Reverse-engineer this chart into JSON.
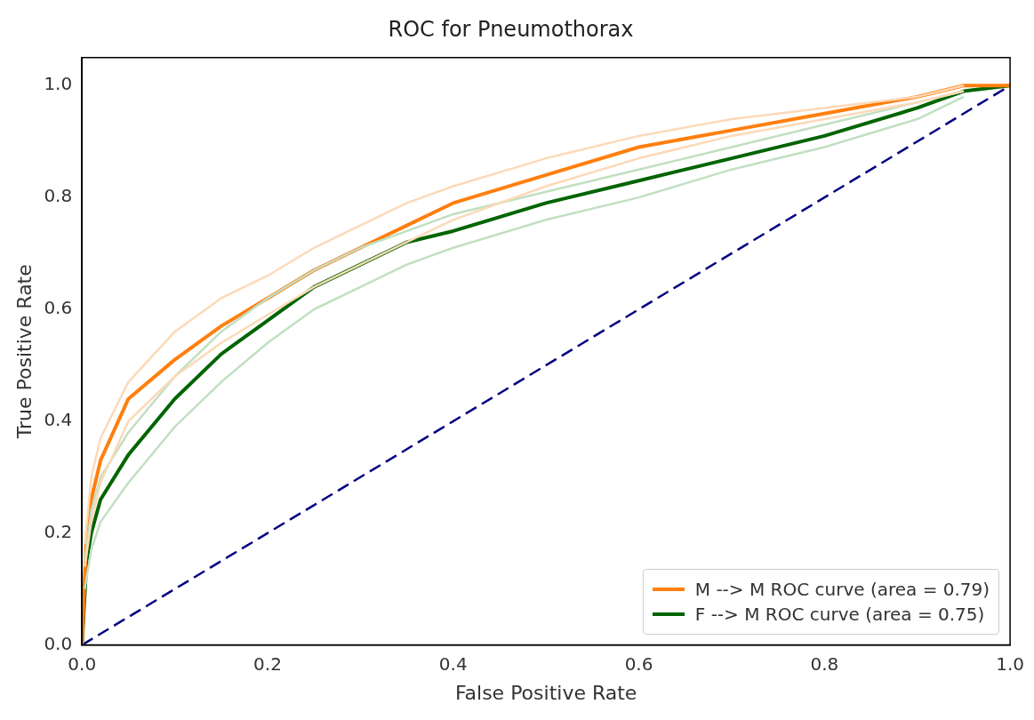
{
  "chart_data": {
    "type": "line",
    "title": "ROC for Pneumothorax",
    "xlabel": "False Positive Rate",
    "ylabel": "True Positive Rate",
    "xlim": [
      0,
      1
    ],
    "ylim": [
      0,
      1.05
    ],
    "xticks": [
      {
        "value": 0,
        "label": "0.0"
      },
      {
        "value": 0.2,
        "label": "0.2"
      },
      {
        "value": 0.4,
        "label": "0.4"
      },
      {
        "value": 0.6,
        "label": "0.6"
      },
      {
        "value": 0.8,
        "label": "0.8"
      },
      {
        "value": 1,
        "label": "1.0"
      }
    ],
    "yticks": [
      {
        "value": 0,
        "label": "0.0"
      },
      {
        "value": 0.2,
        "label": "0.2"
      },
      {
        "value": 0.4,
        "label": "0.4"
      },
      {
        "value": 0.6,
        "label": "0.6"
      },
      {
        "value": 0.8,
        "label": "0.8"
      },
      {
        "value": 1,
        "label": "1.0"
      }
    ],
    "grid": false,
    "legend": "bottom right",
    "marker": "none",
    "series": [
      {
        "color": "#fdd9b8",
        "x": [
          0.003,
          0.01,
          0.02,
          0.05,
          0.1,
          0.15,
          0.2,
          0.25,
          0.3,
          0.35,
          0.4,
          0.5,
          0.6,
          0.7,
          0.8,
          0.9,
          0.95
        ],
        "values": [
          0.18,
          0.3,
          0.37,
          0.47,
          0.56,
          0.62,
          0.66,
          0.71,
          0.75,
          0.79,
          0.82,
          0.87,
          0.91,
          0.94,
          0.96,
          0.98,
          1
        ]
      },
      {
        "color": "#fdd9b8",
        "x": [
          0.003,
          0.01,
          0.02,
          0.05,
          0.1,
          0.15,
          0.2,
          0.25,
          0.3,
          0.35,
          0.4,
          0.5,
          0.6,
          0.7,
          0.8,
          0.9,
          0.95
        ],
        "values": [
          0.14,
          0.22,
          0.29,
          0.4,
          0.48,
          0.54,
          0.59,
          0.64,
          0.68,
          0.72,
          0.76,
          0.82,
          0.87,
          0.91,
          0.94,
          0.97,
          0.99
        ]
      },
      {
        "color": "#c2dfc2",
        "x": [
          0.003,
          0.01,
          0.02,
          0.05,
          0.1,
          0.15,
          0.2,
          0.25,
          0.3,
          0.35,
          0.4,
          0.5,
          0.6,
          0.7,
          0.8,
          0.9,
          0.95
        ],
        "values": [
          0.15,
          0.24,
          0.3,
          0.38,
          0.48,
          0.56,
          0.62,
          0.67,
          0.71,
          0.74,
          0.77,
          0.81,
          0.85,
          0.89,
          0.93,
          0.97,
          0.99
        ]
      },
      {
        "color": "#c2dfc2",
        "x": [
          0.003,
          0.01,
          0.02,
          0.05,
          0.1,
          0.15,
          0.2,
          0.25,
          0.3,
          0.35,
          0.4,
          0.5,
          0.6,
          0.7,
          0.8,
          0.9,
          0.95
        ],
        "values": [
          0.1,
          0.17,
          0.22,
          0.29,
          0.39,
          0.47,
          0.54,
          0.6,
          0.64,
          0.68,
          0.71,
          0.76,
          0.8,
          0.85,
          0.89,
          0.94,
          0.98
        ]
      },
      {
        "name": "M --> M ROC curve (area = 0.79)",
        "color": "#ff7f0e",
        "x": [
          0,
          0.005,
          0.01,
          0.02,
          0.05,
          0.1,
          0.15,
          0.2,
          0.25,
          0.3,
          0.35,
          0.4,
          0.5,
          0.6,
          0.7,
          0.8,
          0.9,
          0.95,
          1
        ],
        "values": [
          0,
          0.2,
          0.26,
          0.33,
          0.44,
          0.51,
          0.57,
          0.62,
          0.67,
          0.71,
          0.75,
          0.79,
          0.84,
          0.89,
          0.92,
          0.95,
          0.98,
          1,
          1
        ]
      },
      {
        "name": "F --> M ROC curve (area = 0.75)",
        "color": "#006400",
        "x": [
          0,
          0.005,
          0.01,
          0.02,
          0.05,
          0.1,
          0.15,
          0.2,
          0.25,
          0.3,
          0.35,
          0.4,
          0.5,
          0.6,
          0.7,
          0.8,
          0.9,
          0.95,
          1
        ],
        "values": [
          0,
          0.15,
          0.2,
          0.26,
          0.34,
          0.44,
          0.52,
          0.58,
          0.64,
          0.68,
          0.72,
          0.74,
          0.79,
          0.83,
          0.87,
          0.91,
          0.96,
          0.99,
          1
        ]
      },
      {
        "color": "#000080",
        "line_style": "dashed",
        "x": [
          0,
          1
        ],
        "values": [
          0,
          1
        ]
      }
    ]
  }
}
